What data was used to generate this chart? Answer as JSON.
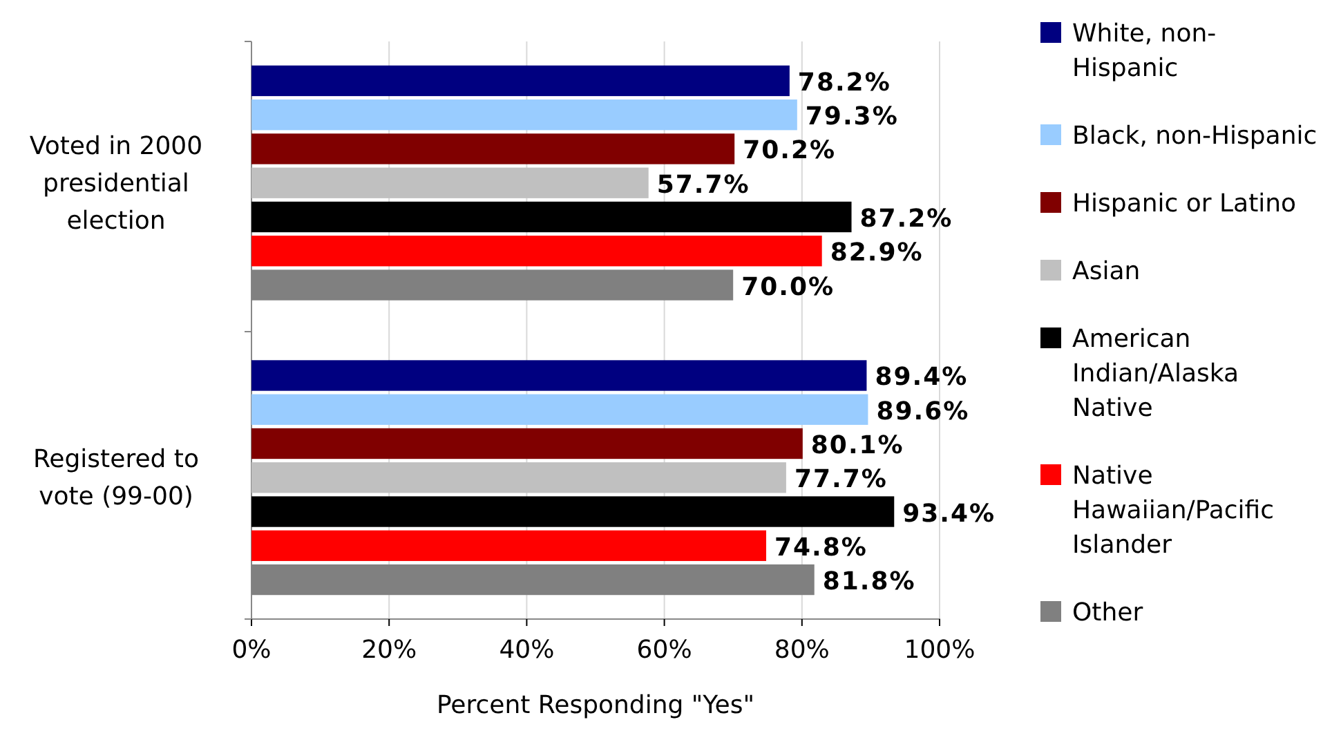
{
  "chart_data": {
    "type": "bar",
    "orientation": "horizontal",
    "xlabel": "Percent Responding \"Yes\"",
    "categories": [
      "Voted in 2000 presidential election",
      "Registered to vote (99-00)"
    ],
    "xlim": [
      0,
      100
    ],
    "xticks": [
      {
        "value": 0,
        "label": "0%"
      },
      {
        "value": 20,
        "label": "20%"
      },
      {
        "value": 40,
        "label": "40%"
      },
      {
        "value": 60,
        "label": "60%"
      },
      {
        "value": 80,
        "label": "80%"
      },
      {
        "value": 100,
        "label": "100%"
      }
    ],
    "grid": "x",
    "legend": "right",
    "series": [
      {
        "name": "White, non-Hispanic",
        "color": "#000080",
        "values": [
          78.2,
          89.4
        ],
        "value_labels": [
          "78.2%",
          "89.4%"
        ]
      },
      {
        "name": "Black, non-Hispanic",
        "color": "#99ccff",
        "values": [
          79.3,
          89.6
        ],
        "value_labels": [
          "79.3%",
          "89.6%"
        ]
      },
      {
        "name": "Hispanic or Latino",
        "color": "#800000",
        "values": [
          70.2,
          80.1
        ],
        "value_labels": [
          "70.2%",
          "80.1%"
        ]
      },
      {
        "name": "Asian",
        "color": "#c0c0c0",
        "values": [
          57.7,
          77.7
        ],
        "value_labels": [
          "57.7%",
          "77.7%"
        ]
      },
      {
        "name": "American Indian/Alaska Native",
        "color": "#000000",
        "values": [
          87.2,
          93.4
        ],
        "value_labels": [
          "87.2%",
          "93.4%"
        ]
      },
      {
        "name": "Native Hawaiian/Pacific Islander",
        "color": "#ff0000",
        "values": [
          82.9,
          74.8
        ],
        "value_labels": [
          "82.9%",
          "74.8%"
        ]
      },
      {
        "name": "Other",
        "color": "#808080",
        "values": [
          70.0,
          81.8
        ],
        "value_labels": [
          "70.0%",
          "81.8%"
        ]
      }
    ]
  }
}
